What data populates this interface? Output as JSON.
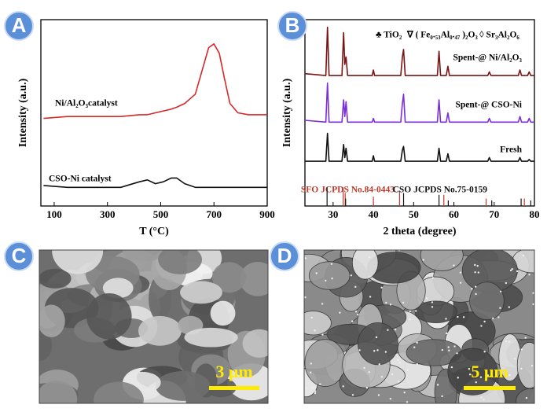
{
  "panel_labels": [
    "A",
    "B",
    "C",
    "D"
  ],
  "chart_data": [
    {
      "type": "line",
      "xlabel": "T (°C)",
      "ylabel": "Intensity (a.u.)",
      "xlim": [
        50,
        900
      ],
      "xticks": [
        100,
        300,
        500,
        700,
        900
      ],
      "ylim": [
        0,
        100
      ],
      "x": [
        60,
        150,
        250,
        350,
        420,
        450,
        480,
        510,
        540,
        560,
        590,
        630,
        650,
        680,
        700,
        720,
        740,
        760,
        790,
        830,
        900
      ],
      "series": [
        {
          "name": "Ni/Al₂O₃catalyst",
          "color": "#d42a2a",
          "values": [
            47,
            48,
            48,
            48,
            49,
            49,
            50,
            51,
            52,
            53,
            55,
            60,
            70,
            85,
            87,
            82,
            68,
            55,
            50,
            49,
            49
          ]
        },
        {
          "name": "CSO-Ni catalyst",
          "color": "#111111",
          "values": [
            11,
            10,
            10,
            10,
            13,
            14,
            12,
            13,
            15,
            15,
            12,
            10,
            10,
            10,
            10,
            10,
            10,
            10,
            10,
            10,
            10
          ]
        }
      ]
    },
    {
      "type": "line",
      "xlabel": "2 theta (degree)",
      "ylabel": "Intensity (a.u.)",
      "xlim": [
        23,
        80
      ],
      "xticks": [
        30,
        40,
        50,
        60,
        70,
        80
      ],
      "ylim": [
        0,
        100
      ],
      "annotations": [
        "♣ TiO₂",
        "∇ ( Fe₀.₅₃Al₀.₄₇ )₂O₃",
        "◊ Sr₃Al₂O₆"
      ],
      "x": [
        23,
        28.2,
        28.6,
        29.0,
        32.2,
        32.6,
        32.9,
        33.2,
        33.6,
        39.7,
        40.0,
        40.3,
        46.8,
        47.2,
        47.5,
        47.9,
        55.9,
        56.3,
        56.7,
        58.1,
        58.5,
        58.9,
        68.4,
        68.8,
        69.2,
        76.0,
        76.4,
        76.8,
        78.3,
        78.7,
        79.1,
        80
      ],
      "series": [
        {
          "name": "Spent-@ Ni/Al₂O₃",
          "color": "#7a1414",
          "values": [
            71,
            70,
            96,
            70,
            70,
            93,
            76,
            80,
            70,
            70,
            73,
            70,
            70,
            80,
            84,
            70,
            70,
            83,
            70,
            70,
            75,
            70,
            70,
            72,
            70,
            70,
            73,
            70,
            70,
            72,
            70,
            70
          ]
        },
        {
          "name": "Spent-@ CSO-Ni",
          "color": "#7b2fd6",
          "values": [
            46,
            45,
            66,
            45,
            45,
            57,
            48,
            56,
            45,
            45,
            47,
            45,
            45,
            55,
            60,
            45,
            45,
            57,
            45,
            45,
            50,
            45,
            45,
            47,
            45,
            45,
            48,
            45,
            45,
            47,
            45,
            45
          ]
        },
        {
          "name": "Fresh",
          "color": "#111111",
          "values": [
            24,
            24,
            39,
            24,
            24,
            33,
            26,
            31,
            24,
            24,
            27,
            24,
            24,
            30,
            32,
            24,
            24,
            31,
            24,
            24,
            28,
            24,
            24,
            26,
            24,
            24,
            26,
            24,
            24,
            25,
            24,
            24
          ]
        }
      ],
      "references": [
        {
          "name": "SFO JCPDS No.84-0443",
          "color": "#c0392b",
          "x": [
            32.5,
            33.0,
            40.0,
            46.5,
            57.5,
            68.0,
            77.5
          ],
          "values": [
            10,
            7,
            5,
            8,
            6,
            4,
            4
          ]
        },
        {
          "name": "CSO JCPDS No.75-0159",
          "color": "#111111",
          "x": [
            28.5,
            33.1,
            47.5,
            56.3,
            58.6,
            69.4,
            76.7,
            79.1
          ],
          "values": [
            10,
            4,
            7,
            6,
            3,
            3,
            4,
            3
          ]
        }
      ]
    }
  ],
  "micrographs": [
    {
      "scale_bar": "3 μm"
    },
    {
      "scale_bar": "5 μm"
    }
  ]
}
